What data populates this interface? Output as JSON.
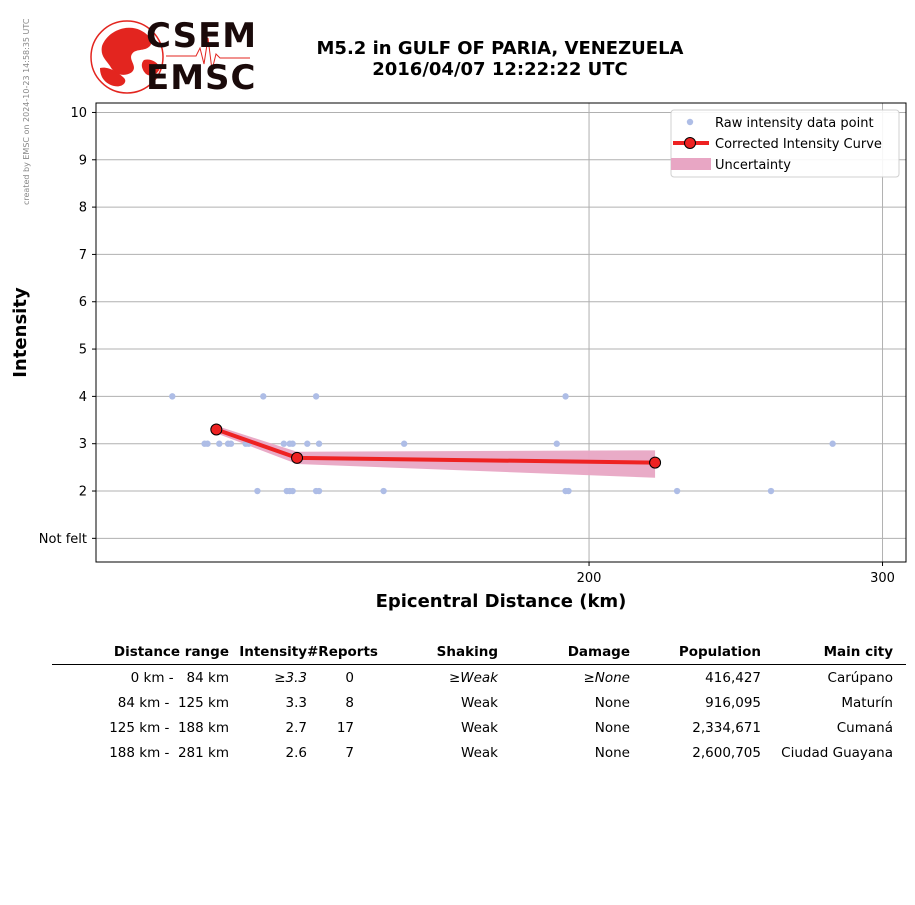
{
  "credit": "created by EMSC on 2024-10-23 14:58:35 UTC",
  "logo": {
    "line1": "CSEM",
    "line2": "EMSC"
  },
  "title": {
    "line1": "M5.2 in GULF OF PARIA, VENEZUELA",
    "line2": "2016/04/07 12:22:22 UTC"
  },
  "colors": {
    "raw": "#aebde6",
    "curve": "#ee2222",
    "uncertainty": "#e8a6c4",
    "grid": "#b0b0b0",
    "logo_red": "#e3251f"
  },
  "chart_data": {
    "type": "scatter",
    "xlabel": "Epicentral Distance (km)",
    "ylabel": "Intensity",
    "xlim": [
      32,
      308
    ],
    "ylim": [
      0.5,
      10.2
    ],
    "xticks": [
      200,
      300
    ],
    "yticks": [
      {
        "value": 1,
        "label": "Not felt"
      },
      {
        "value": 2,
        "label": "2"
      },
      {
        "value": 3,
        "label": "3"
      },
      {
        "value": 4,
        "label": "4"
      },
      {
        "value": 5,
        "label": "5"
      },
      {
        "value": 6,
        "label": "6"
      },
      {
        "value": 7,
        "label": "7"
      },
      {
        "value": 8,
        "label": "8"
      },
      {
        "value": 9,
        "label": "9"
      },
      {
        "value": 10,
        "label": "10"
      }
    ],
    "grid": true,
    "legend_position": "top-right",
    "legend": [
      {
        "label": "Raw intensity data point",
        "kind": "point"
      },
      {
        "label": "Corrected Intensity Curve",
        "kind": "line"
      },
      {
        "label": "Uncertainty",
        "kind": "band"
      }
    ],
    "raw_points": [
      {
        "x": 58,
        "y": 4
      },
      {
        "x": 89,
        "y": 4
      },
      {
        "x": 107,
        "y": 4
      },
      {
        "x": 192,
        "y": 4
      },
      {
        "x": 69,
        "y": 3
      },
      {
        "x": 70,
        "y": 3
      },
      {
        "x": 74,
        "y": 3
      },
      {
        "x": 77,
        "y": 3
      },
      {
        "x": 78,
        "y": 3
      },
      {
        "x": 83,
        "y": 3
      },
      {
        "x": 84,
        "y": 3
      },
      {
        "x": 96,
        "y": 3
      },
      {
        "x": 98,
        "y": 3
      },
      {
        "x": 99,
        "y": 3
      },
      {
        "x": 104,
        "y": 3
      },
      {
        "x": 108,
        "y": 3
      },
      {
        "x": 137,
        "y": 3
      },
      {
        "x": 189,
        "y": 3
      },
      {
        "x": 283,
        "y": 3
      },
      {
        "x": 87,
        "y": 2
      },
      {
        "x": 97,
        "y": 2
      },
      {
        "x": 98,
        "y": 2
      },
      {
        "x": 99,
        "y": 2
      },
      {
        "x": 107,
        "y": 2
      },
      {
        "x": 108,
        "y": 2
      },
      {
        "x": 130,
        "y": 2
      },
      {
        "x": 192,
        "y": 2
      },
      {
        "x": 193,
        "y": 2
      },
      {
        "x": 230,
        "y": 2
      },
      {
        "x": 262,
        "y": 2
      }
    ],
    "curve": [
      {
        "x": 73,
        "y": 3.3
      },
      {
        "x": 100.5,
        "y": 2.7
      },
      {
        "x": 222.5,
        "y": 2.6
      }
    ],
    "uncertainty_upper": [
      {
        "x": 73,
        "y": 3.38
      },
      {
        "x": 100.5,
        "y": 2.83
      },
      {
        "x": 222.5,
        "y": 2.86
      }
    ],
    "uncertainty_lower": [
      {
        "x": 73,
        "y": 3.22
      },
      {
        "x": 100.5,
        "y": 2.57
      },
      {
        "x": 222.5,
        "y": 2.28
      }
    ]
  },
  "table": {
    "headers": [
      "Distance range",
      "Intensity",
      "#Reports",
      "Shaking",
      "Damage",
      "Population",
      "Main city"
    ],
    "rows": [
      {
        "range": "0 km -   84 km",
        "intensity": "≥3.3",
        "reports": "0",
        "shaking": "≥Weak",
        "damage": "≥None",
        "population": "416,427",
        "city": "Carúpano"
      },
      {
        "range": "84 km -  125 km",
        "intensity": "3.3",
        "reports": "8",
        "shaking": "Weak",
        "damage": "None",
        "population": "916,095",
        "city": "Maturín"
      },
      {
        "range": "125 km -  188 km",
        "intensity": "2.7",
        "reports": "17",
        "shaking": "Weak",
        "damage": "None",
        "population": "2,334,671",
        "city": "Cumaná"
      },
      {
        "range": "188 km -  281 km",
        "intensity": "2.6",
        "reports": "7",
        "shaking": "Weak",
        "damage": "None",
        "population": "2,600,705",
        "city": "Ciudad Guayana"
      }
    ]
  }
}
